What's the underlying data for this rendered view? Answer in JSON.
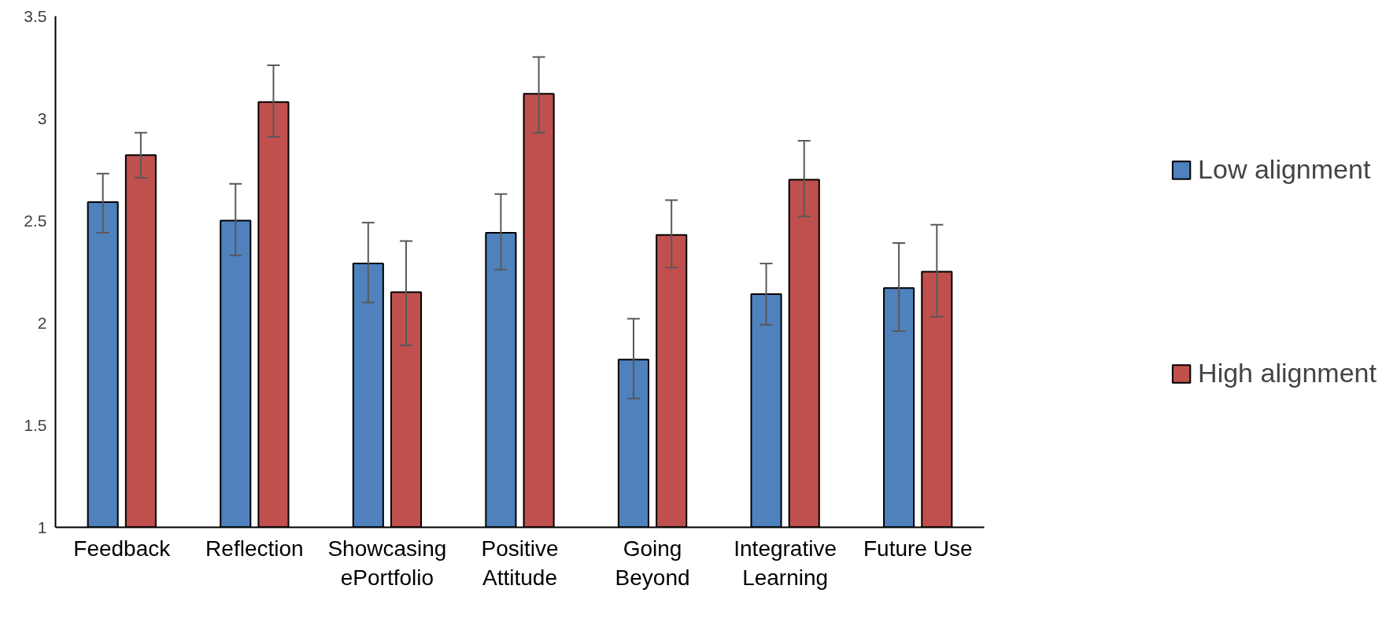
{
  "chart_data": {
    "type": "bar",
    "categories": [
      "Feedback",
      "Reflection",
      "Showcasing ePortfolio",
      "Positive Attitude",
      "Going Beyond",
      "Integrative Learning",
      "Future Use"
    ],
    "series": [
      {
        "name": "Low alignment",
        "color": "#4f81bd",
        "values": [
          2.59,
          2.5,
          2.29,
          2.44,
          1.82,
          2.14,
          2.17
        ],
        "errors": [
          [
            2.44,
            2.73
          ],
          [
            2.33,
            2.68
          ],
          [
            2.1,
            2.49
          ],
          [
            2.26,
            2.63
          ],
          [
            1.63,
            2.02
          ],
          [
            1.99,
            2.29
          ],
          [
            1.96,
            2.39
          ]
        ]
      },
      {
        "name": "High alignment",
        "color": "#c0504d",
        "values": [
          2.82,
          3.08,
          2.15,
          3.12,
          2.43,
          2.7,
          2.25
        ],
        "errors": [
          [
            2.71,
            2.93
          ],
          [
            2.91,
            3.26
          ],
          [
            1.89,
            2.4
          ],
          [
            2.93,
            3.3
          ],
          [
            2.27,
            2.6
          ],
          [
            2.52,
            2.89
          ],
          [
            2.03,
            2.48
          ]
        ]
      }
    ],
    "ylim": [
      1,
      3.5
    ],
    "yticks": [
      1,
      1.5,
      2,
      2.5,
      3,
      3.5
    ],
    "grid": false,
    "legend": "right"
  }
}
